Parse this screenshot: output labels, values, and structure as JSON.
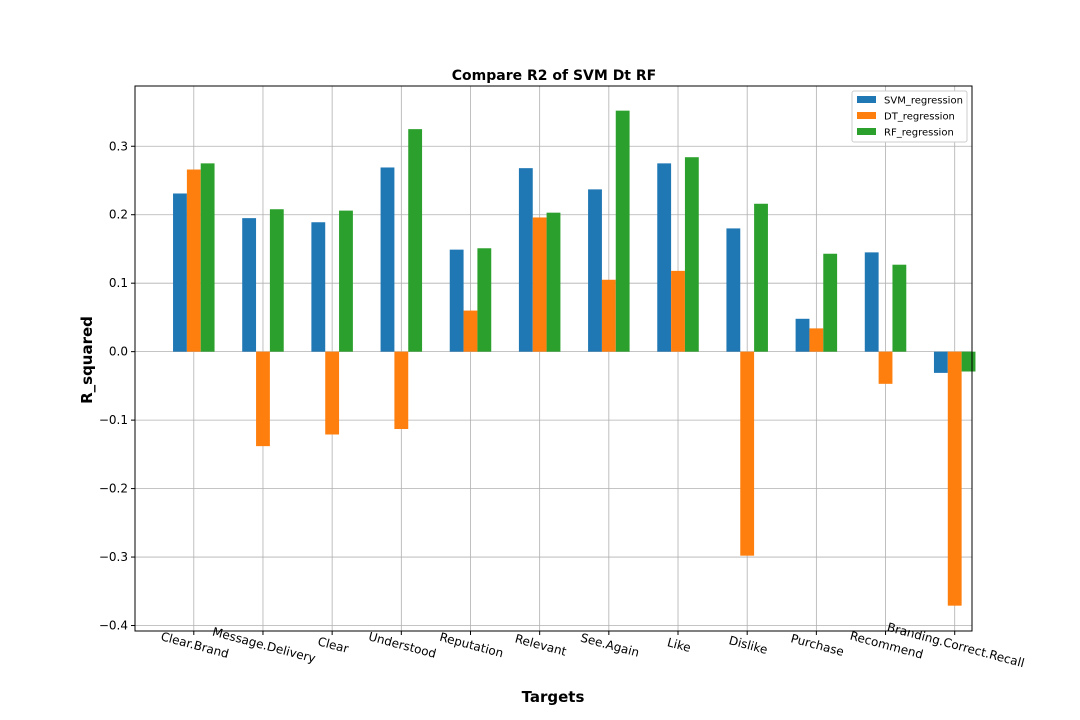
{
  "chart_data": {
    "type": "bar",
    "title": "Compare R2 of SVM Dt RF",
    "xlabel": "Targets",
    "ylabel": "R_squared",
    "categories": [
      "Clear.Brand",
      "Message.Delivery",
      "Clear",
      "Understood",
      "Reputation",
      "Relevant",
      "See.Again",
      "Like",
      "Dislike",
      "Purchase",
      "Recommend",
      "Branding.Correct.Recall"
    ],
    "series": [
      {
        "name": "SVM_regression",
        "color": "#1f77b4",
        "values": [
          0.231,
          0.195,
          0.189,
          0.269,
          0.149,
          0.268,
          0.237,
          0.275,
          0.18,
          0.048,
          0.145,
          -0.031
        ]
      },
      {
        "name": "DT_regression",
        "color": "#ff7f0e",
        "values": [
          0.266,
          -0.138,
          -0.121,
          -0.113,
          0.06,
          0.196,
          0.105,
          0.118,
          -0.298,
          0.034,
          -0.047,
          -0.371
        ]
      },
      {
        "name": "RF_regression",
        "color": "#2ca02c",
        "values": [
          0.275,
          0.208,
          0.206,
          0.325,
          0.151,
          0.203,
          0.352,
          0.284,
          0.216,
          0.143,
          0.127,
          -0.029
        ]
      }
    ],
    "yticks": [
      -0.4,
      -0.3,
      -0.2,
      -0.1,
      0.0,
      0.1,
      0.2,
      0.3
    ],
    "ytick_labels": [
      "−0.4",
      "−0.3",
      "−0.2",
      "−0.1",
      "0.0",
      "0.1",
      "0.2",
      "0.3"
    ],
    "ylim": [
      -0.408,
      0.388
    ],
    "grid": true,
    "legend_position": "top-right",
    "xtick_rotation": "slanted"
  }
}
